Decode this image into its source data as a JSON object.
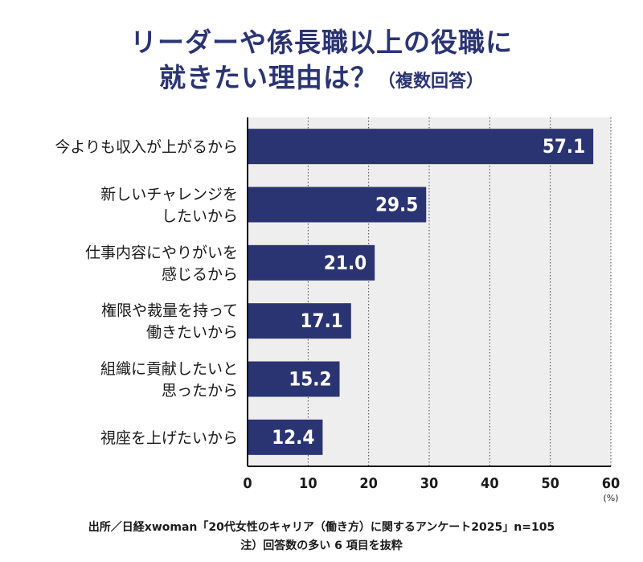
{
  "header": {
    "title_line1": "リーダーや係長職以上の役職に",
    "title_line2_main": "就きたい理由は？",
    "title_line2_sub": "（複数回答）"
  },
  "footer": {
    "source": "出所／日経xwoman「20代女性のキャリア（働き方）に関するアンケート2025」n=105",
    "note": "注）回答数の多い 6 項目を抜粋"
  },
  "colors": {
    "bar": "#2b3473",
    "plot_bg": "#eeeeee",
    "grid": "#444444",
    "title": "#2b3473"
  },
  "chart_data": {
    "type": "bar",
    "orientation": "horizontal",
    "categories": [
      [
        "今よりも収入が上がるから"
      ],
      [
        "新しいチャレンジを",
        "したいから"
      ],
      [
        "仕事内容にやりがいを",
        "感じるから"
      ],
      [
        "権限や裁量を持って",
        "働きたいから"
      ],
      [
        "組織に貢献したいと",
        "思ったから"
      ],
      [
        "視座を上げたいから"
      ]
    ],
    "values": [
      57.1,
      29.5,
      21.0,
      17.1,
      15.2,
      12.4
    ],
    "value_labels": [
      "57.1",
      "29.5",
      "21.0",
      "17.1",
      "15.2",
      "12.4"
    ],
    "xlim": [
      0,
      60
    ],
    "xticks": [
      0,
      10,
      20,
      30,
      40,
      50,
      60
    ],
    "xunit": "(%)",
    "grid": true,
    "legend": "none"
  }
}
